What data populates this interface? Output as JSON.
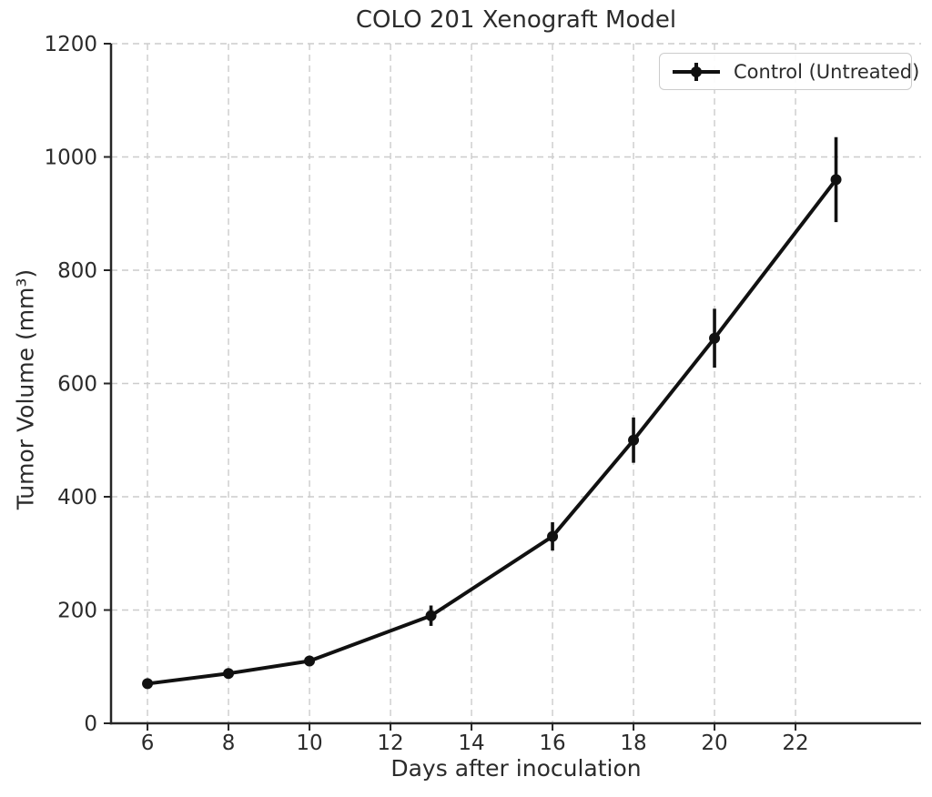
{
  "figure": {
    "background": "#ffffff"
  },
  "chart_data": {
    "type": "line",
    "title": "COLO 201 Xenograft Model",
    "xlabel": "Days after inoculation",
    "ylabel": "Tumor Volume (mm³)",
    "xlim": [
      5.1,
      25.1
    ],
    "ylim": [
      0,
      1200
    ],
    "x_ticks": [
      6,
      8,
      10,
      12,
      14,
      16,
      18,
      20,
      22
    ],
    "y_ticks": [
      0,
      200,
      400,
      600,
      800,
      1000,
      1200
    ],
    "grid": true,
    "grid_style": "dashed",
    "legend_position": "upper right",
    "colors": {
      "line": "#111111",
      "grid": "#cccccc",
      "axis": "#262626",
      "text": "#2b2b2b",
      "legend_border": "#cccccc",
      "background": "#ffffff"
    },
    "series": [
      {
        "name": "Control (Untreated)",
        "color": "#111111",
        "marker": "circle",
        "linestyle": "solid",
        "x": [
          6,
          8,
          10,
          13,
          16,
          18,
          20,
          23
        ],
        "y": [
          70,
          88,
          110,
          190,
          330,
          500,
          680,
          960
        ],
        "yerr": [
          8,
          8,
          8,
          18,
          25,
          40,
          52,
          75
        ]
      }
    ]
  }
}
